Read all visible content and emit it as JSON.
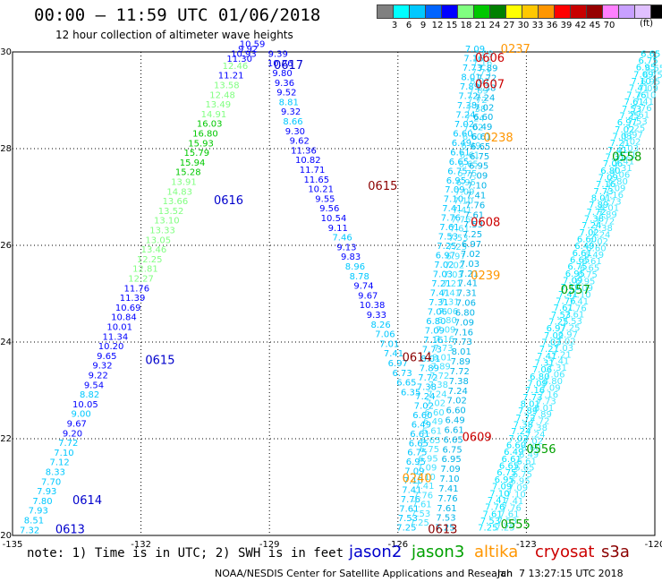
{
  "title": "00:00 – 11:59 UTC 01/06/2018",
  "subtitle": "12 hour collection of altimeter wave heights",
  "scale": {
    "colors": [
      "#808080",
      "#00ffff",
      "#00c8ff",
      "#0064ff",
      "#0000ff",
      "#80ff80",
      "#00c800",
      "#008000",
      "#ffff00",
      "#ffc800",
      "#ff9600",
      "#ff0000",
      "#c80000",
      "#960000",
      "#ff80ff",
      "#c8a0ff",
      "#e0c0ff",
      "#000000"
    ],
    "labels": [
      "3",
      "6",
      "9",
      "12",
      "15",
      "18",
      "21",
      "24",
      "27",
      "30",
      "33",
      "36",
      "39",
      "42",
      "45",
      "70"
    ],
    "unit": "(ft)"
  },
  "axes": {
    "lon_ticks": [
      "-135",
      "-132",
      "-129",
      "-126",
      "-123",
      "-120"
    ],
    "lat_ticks": [
      "30",
      "28",
      "26",
      "24",
      "22",
      "20"
    ],
    "lon_range": [
      -135,
      -120
    ],
    "lat_range": [
      20,
      30
    ]
  },
  "footer": {
    "note": "note: 1) Time is in UTC; 2) SWH is in feet",
    "satellites": [
      {
        "name": "jason2",
        "color": "#0000cc"
      },
      {
        "name": "jason3",
        "color": "#00a000"
      },
      {
        "name": "altika",
        "color": "#ff9600"
      },
      {
        "name": "cryosat",
        "color": "#cc0000"
      },
      {
        "name": "s3a",
        "color": "#8b0000"
      }
    ],
    "credit": "NOAA/NESDIS Center for Satellite Applications and Research",
    "timestamp": "Jan  7 13:27:15 UTC 2018"
  },
  "chart_data": {
    "type": "scatter",
    "tracks": [
      {
        "id": "track-jason2-west",
        "satellite": "jason2",
        "times": [
          "0613",
          "0614",
          "0615",
          "0616",
          "0617"
        ],
        "points": [
          {
            "lon": -134.6,
            "lat": 20.05,
            "v": "7.32",
            "c": "#00c8ff"
          },
          {
            "lon": -134.5,
            "lat": 20.25,
            "v": "8.51",
            "c": "#00c8ff"
          },
          {
            "lon": -134.4,
            "lat": 20.45,
            "v": "7.93",
            "c": "#00c8ff"
          },
          {
            "lon": -134.3,
            "lat": 20.65,
            "v": "7.80",
            "c": "#00c8ff"
          },
          {
            "lon": -134.2,
            "lat": 20.85,
            "v": "7.93",
            "c": "#00c8ff"
          },
          {
            "lon": -134.1,
            "lat": 21.05,
            "v": "7.70",
            "c": "#00c8ff"
          },
          {
            "lon": -134.0,
            "lat": 21.25,
            "v": "8.33",
            "c": "#00c8ff"
          },
          {
            "lon": -133.9,
            "lat": 21.45,
            "v": "7.12",
            "c": "#00c8ff"
          },
          {
            "lon": -133.8,
            "lat": 21.65,
            "v": "7.10",
            "c": "#00c8ff"
          },
          {
            "lon": -133.7,
            "lat": 21.85,
            "v": "7.72",
            "c": "#00c8ff"
          },
          {
            "lon": -133.6,
            "lat": 22.05,
            "v": "9.20",
            "c": "#0000ff"
          },
          {
            "lon": -133.5,
            "lat": 22.25,
            "v": "9.67",
            "c": "#0000ff"
          },
          {
            "lon": -133.4,
            "lat": 22.45,
            "v": "9.00",
            "c": "#00c8ff"
          },
          {
            "lon": -133.3,
            "lat": 22.65,
            "v": "10.05",
            "c": "#0000ff"
          },
          {
            "lon": -133.2,
            "lat": 22.85,
            "v": "8.82",
            "c": "#00c8ff"
          },
          {
            "lon": -133.1,
            "lat": 23.05,
            "v": "9.54",
            "c": "#0000ff"
          },
          {
            "lon": -133.0,
            "lat": 23.25,
            "v": "9.22",
            "c": "#0000ff"
          },
          {
            "lon": -132.9,
            "lat": 23.45,
            "v": "9.32",
            "c": "#0000ff"
          },
          {
            "lon": -132.8,
            "lat": 23.65,
            "v": "9.65",
            "c": "#0000ff"
          },
          {
            "lon": -132.7,
            "lat": 23.85,
            "v": "10.20",
            "c": "#0000ff"
          },
          {
            "lon": -132.6,
            "lat": 24.05,
            "v": "11.34",
            "c": "#0000ff"
          },
          {
            "lon": -132.5,
            "lat": 24.25,
            "v": "10.01",
            "c": "#0000ff"
          },
          {
            "lon": -132.4,
            "lat": 24.45,
            "v": "10.84",
            "c": "#0000ff"
          },
          {
            "lon": -132.3,
            "lat": 24.65,
            "v": "10.69",
            "c": "#0000ff"
          },
          {
            "lon": -132.2,
            "lat": 24.85,
            "v": "11.39",
            "c": "#0000ff"
          },
          {
            "lon": -132.1,
            "lat": 25.05,
            "v": "11.76",
            "c": "#0000ff"
          },
          {
            "lon": -132.0,
            "lat": 25.25,
            "v": "12.27",
            "c": "#80ff80"
          },
          {
            "lon": -131.9,
            "lat": 25.45,
            "v": "12.81",
            "c": "#80ff80"
          },
          {
            "lon": -131.8,
            "lat": 25.65,
            "v": "12.25",
            "c": "#80ff80"
          },
          {
            "lon": -131.7,
            "lat": 25.85,
            "v": "13.46",
            "c": "#80ff80"
          },
          {
            "lon": -131.6,
            "lat": 26.05,
            "v": "13.05",
            "c": "#80ff80"
          },
          {
            "lon": -131.5,
            "lat": 26.25,
            "v": "13.33",
            "c": "#80ff80"
          },
          {
            "lon": -131.4,
            "lat": 26.45,
            "v": "13.10",
            "c": "#80ff80"
          },
          {
            "lon": -131.3,
            "lat": 26.65,
            "v": "13.52",
            "c": "#80ff80"
          },
          {
            "lon": -131.2,
            "lat": 26.85,
            "v": "13.66",
            "c": "#80ff80"
          },
          {
            "lon": -131.1,
            "lat": 27.05,
            "v": "14.83",
            "c": "#80ff80"
          },
          {
            "lon": -131.0,
            "lat": 27.25,
            "v": "13.91",
            "c": "#80ff80"
          },
          {
            "lon": -130.9,
            "lat": 27.45,
            "v": "15.28",
            "c": "#00c800"
          },
          {
            "lon": -130.8,
            "lat": 27.65,
            "v": "15.94",
            "c": "#00c800"
          },
          {
            "lon": -130.7,
            "lat": 27.85,
            "v": "15.79",
            "c": "#00c800"
          },
          {
            "lon": -130.6,
            "lat": 28.05,
            "v": "15.93",
            "c": "#00c800"
          },
          {
            "lon": -130.5,
            "lat": 28.25,
            "v": "16.80",
            "c": "#00c800"
          },
          {
            "lon": -130.4,
            "lat": 28.45,
            "v": "16.03",
            "c": "#00c800"
          },
          {
            "lon": -130.3,
            "lat": 28.65,
            "v": "14.91",
            "c": "#80ff80"
          },
          {
            "lon": -130.2,
            "lat": 28.85,
            "v": "13.49",
            "c": "#80ff80"
          },
          {
            "lon": -130.1,
            "lat": 29.05,
            "v": "12.48",
            "c": "#80ff80"
          },
          {
            "lon": -130.0,
            "lat": 29.25,
            "v": "13.58",
            "c": "#80ff80"
          },
          {
            "lon": -129.9,
            "lat": 29.45,
            "v": "11.21",
            "c": "#0000ff"
          },
          {
            "lon": -129.8,
            "lat": 29.65,
            "v": "12.46",
            "c": "#80ff80"
          },
          {
            "lon": -129.7,
            "lat": 29.8,
            "v": "11.30",
            "c": "#0000ff"
          },
          {
            "lon": -129.6,
            "lat": 29.9,
            "v": "10.93",
            "c": "#0000ff"
          },
          {
            "lon": -129.5,
            "lat": 30.0,
            "v": "9.92",
            "c": "#0000ff"
          },
          {
            "lon": -129.4,
            "lat": 30.1,
            "v": "10.59",
            "c": "#0000ff"
          }
        ]
      },
      {
        "id": "track-jason2-mid",
        "satellite": "jason2",
        "times": [
          "0613",
          "0614",
          "0615"
        ],
        "points": [
          {
            "lon": -128.8,
            "lat": 29.9,
            "v": "9.39",
            "c": "#0000ff"
          },
          {
            "lon": -128.75,
            "lat": 29.7,
            "v": "10.26",
            "c": "#0000ff"
          },
          {
            "lon": -128.7,
            "lat": 29.5,
            "v": "9.80",
            "c": "#0000ff"
          },
          {
            "lon": -128.65,
            "lat": 29.3,
            "v": "9.36",
            "c": "#0000ff"
          },
          {
            "lon": -128.6,
            "lat": 29.1,
            "v": "9.52",
            "c": "#0000ff"
          },
          {
            "lon": -128.55,
            "lat": 28.9,
            "v": "8.81",
            "c": "#00c8ff"
          },
          {
            "lon": -128.5,
            "lat": 28.7,
            "v": "9.32",
            "c": "#0000ff"
          },
          {
            "lon": -128.45,
            "lat": 28.5,
            "v": "8.66",
            "c": "#00c8ff"
          },
          {
            "lon": -128.4,
            "lat": 28.3,
            "v": "9.30",
            "c": "#0000ff"
          },
          {
            "lon": -128.3,
            "lat": 28.1,
            "v": "9.62",
            "c": "#0000ff"
          },
          {
            "lon": -128.2,
            "lat": 27.9,
            "v": "11.36",
            "c": "#0000ff"
          },
          {
            "lon": -128.1,
            "lat": 27.7,
            "v": "10.82",
            "c": "#0000ff"
          },
          {
            "lon": -128.0,
            "lat": 27.5,
            "v": "11.71",
            "c": "#0000ff"
          },
          {
            "lon": -127.9,
            "lat": 27.3,
            "v": "11.65",
            "c": "#0000ff"
          },
          {
            "lon": -127.8,
            "lat": 27.1,
            "v": "10.21",
            "c": "#0000ff"
          },
          {
            "lon": -127.7,
            "lat": 26.9,
            "v": "9.55",
            "c": "#0000ff"
          },
          {
            "lon": -127.6,
            "lat": 26.7,
            "v": "9.56",
            "c": "#0000ff"
          },
          {
            "lon": -127.5,
            "lat": 26.5,
            "v": "10.54",
            "c": "#0000ff"
          },
          {
            "lon": -127.4,
            "lat": 26.3,
            "v": "9.11",
            "c": "#0000ff"
          },
          {
            "lon": -127.3,
            "lat": 26.1,
            "v": "7.46",
            "c": "#00c8ff"
          },
          {
            "lon": -127.2,
            "lat": 25.9,
            "v": "9.13",
            "c": "#0000ff"
          },
          {
            "lon": -127.1,
            "lat": 25.7,
            "v": "9.83",
            "c": "#0000ff"
          },
          {
            "lon": -127.0,
            "lat": 25.5,
            "v": "8.96",
            "c": "#00c8ff"
          },
          {
            "lon": -126.9,
            "lat": 25.3,
            "v": "8.78",
            "c": "#00c8ff"
          },
          {
            "lon": -126.8,
            "lat": 25.1,
            "v": "9.74",
            "c": "#0000ff"
          },
          {
            "lon": -126.7,
            "lat": 24.9,
            "v": "9.67",
            "c": "#0000ff"
          },
          {
            "lon": -126.6,
            "lat": 24.7,
            "v": "10.38",
            "c": "#0000ff"
          },
          {
            "lon": -126.5,
            "lat": 24.5,
            "v": "9.33",
            "c": "#0000ff"
          },
          {
            "lon": -126.4,
            "lat": 24.3,
            "v": "8.26",
            "c": "#00c8ff"
          },
          {
            "lon": -126.3,
            "lat": 24.1,
            "v": "7.06",
            "c": "#00c8ff"
          },
          {
            "lon": -126.2,
            "lat": 23.9,
            "v": "7.01",
            "c": "#00c8ff"
          },
          {
            "lon": -126.1,
            "lat": 23.7,
            "v": "7.41",
            "c": "#00c8ff"
          },
          {
            "lon": -126.0,
            "lat": 23.5,
            "v": "6.97",
            "c": "#00c8ff"
          },
          {
            "lon": -125.9,
            "lat": 23.3,
            "v": "6.73",
            "c": "#00c8ff"
          },
          {
            "lon": -125.8,
            "lat": 23.1,
            "v": "6.65",
            "c": "#00c8ff"
          },
          {
            "lon": -125.7,
            "lat": 22.9,
            "v": "6.35",
            "c": "#00c8ff"
          }
        ]
      }
    ],
    "swath": {
      "satellite": "jason3",
      "times": [
        "0555",
        "0556",
        "0557",
        "0558"
      ],
      "values": [
        "7.25",
        "7.53",
        "7.61",
        "7.76",
        "7.41",
        "7.10",
        "7.09",
        "6.95",
        "6.75",
        "6.65",
        "6.61",
        "6.49",
        "6.60",
        "7.02",
        "7.24",
        "7.38",
        "7.72",
        "7.89",
        "8.01",
        "7.73",
        "7.16",
        "7.09",
        "6.80",
        "7.06",
        "7.31",
        "7.41",
        "7.21",
        "7.03",
        "7.02",
        "6.97"
      ]
    },
    "pass_labels": [
      {
        "text": "0613",
        "lon": -134.0,
        "lat": 20.05,
        "c": "#0000cc"
      },
      {
        "text": "0614",
        "lon": -133.6,
        "lat": 20.65,
        "c": "#0000cc"
      },
      {
        "text": "0615",
        "lon": -131.9,
        "lat": 23.55,
        "c": "#0000cc"
      },
      {
        "text": "0616",
        "lon": -130.3,
        "lat": 26.85,
        "c": "#0000cc"
      },
      {
        "text": "0617",
        "lon": -128.9,
        "lat": 29.65,
        "c": "#0000cc"
      },
      {
        "text": "0615",
        "lon": -126.7,
        "lat": 27.15,
        "c": "#8b0000"
      },
      {
        "text": "0614",
        "lon": -125.9,
        "lat": 23.6,
        "c": "#8b0000"
      },
      {
        "text": "0613",
        "lon": -125.3,
        "lat": 20.05,
        "c": "#8b0000"
      },
      {
        "text": "0606",
        "lon": -124.2,
        "lat": 29.8,
        "c": "#cc0000"
      },
      {
        "text": "0607",
        "lon": -124.2,
        "lat": 29.25,
        "c": "#cc0000"
      },
      {
        "text": "0608",
        "lon": -124.3,
        "lat": 26.4,
        "c": "#cc0000"
      },
      {
        "text": "0609",
        "lon": -124.5,
        "lat": 21.95,
        "c": "#cc0000"
      },
      {
        "text": "0237",
        "lon": -123.6,
        "lat": 29.98,
        "c": "#ff9600"
      },
      {
        "text": "0238",
        "lon": -124.0,
        "lat": 28.15,
        "c": "#ff9600"
      },
      {
        "text": "0239",
        "lon": -124.3,
        "lat": 25.3,
        "c": "#ff9600"
      },
      {
        "text": "0240",
        "lon": -125.9,
        "lat": 21.1,
        "c": "#ff9600"
      },
      {
        "text": "0558",
        "lon": -121.0,
        "lat": 27.75,
        "c": "#00a000"
      },
      {
        "text": "0557",
        "lon": -122.2,
        "lat": 25.0,
        "c": "#00a000"
      },
      {
        "text": "0556",
        "lon": -123.0,
        "lat": 21.7,
        "c": "#00a000"
      },
      {
        "text": "0555",
        "lon": -123.6,
        "lat": 20.15,
        "c": "#00a000"
      }
    ]
  }
}
